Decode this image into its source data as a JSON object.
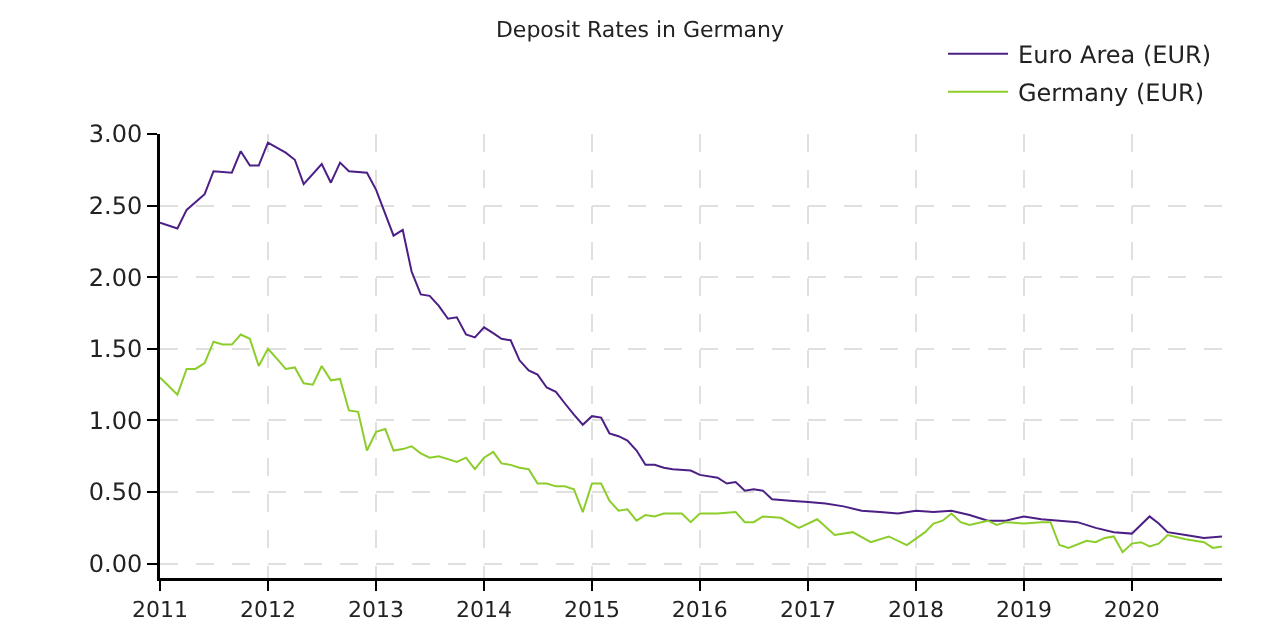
{
  "chart_data": {
    "type": "line",
    "title": "Deposit Rates in Germany",
    "series": [
      {
        "name": "Euro Area (EUR)",
        "color": "#4b1f85",
        "x": [
          "2011-01",
          "2011-03",
          "2011-04",
          "2011-06",
          "2011-07",
          "2011-09",
          "2011-10",
          "2011-11",
          "2011-12",
          "2012-01",
          "2012-03",
          "2012-04",
          "2012-05",
          "2012-07",
          "2012-08",
          "2012-09",
          "2012-10",
          "2012-12",
          "2013-01",
          "2013-03",
          "2013-04",
          "2013-05",
          "2013-06",
          "2013-07",
          "2013-08",
          "2013-09",
          "2013-10",
          "2013-11",
          "2013-12",
          "2014-01",
          "2014-02",
          "2014-03",
          "2014-04",
          "2014-05",
          "2014-06",
          "2014-07",
          "2014-08",
          "2014-09",
          "2014-10",
          "2014-11",
          "2014-12",
          "2015-01",
          "2015-02",
          "2015-03",
          "2015-04",
          "2015-05",
          "2015-06",
          "2015-07",
          "2015-08",
          "2015-09",
          "2015-10",
          "2015-12",
          "2016-01",
          "2016-03",
          "2016-04",
          "2016-05",
          "2016-06",
          "2016-07",
          "2016-08",
          "2016-09",
          "2016-11",
          "2017-01",
          "2017-03",
          "2017-05",
          "2017-07",
          "2017-09",
          "2017-11",
          "2018-01",
          "2018-03",
          "2018-05",
          "2018-07",
          "2018-09",
          "2018-11",
          "2019-01",
          "2019-03",
          "2019-05",
          "2019-07",
          "2019-09",
          "2019-11",
          "2020-01",
          "2020-03",
          "2020-04",
          "2020-05",
          "2020-07",
          "2020-09",
          "2020-11"
        ],
        "values": [
          2.38,
          2.34,
          2.47,
          2.58,
          2.74,
          2.73,
          2.88,
          2.78,
          2.78,
          2.94,
          2.87,
          2.82,
          2.65,
          2.79,
          2.66,
          2.8,
          2.74,
          2.73,
          2.61,
          2.29,
          2.33,
          2.04,
          1.88,
          1.87,
          1.8,
          1.71,
          1.72,
          1.6,
          1.58,
          1.65,
          1.61,
          1.57,
          1.56,
          1.42,
          1.35,
          1.32,
          1.23,
          1.2,
          1.12,
          1.04,
          0.97,
          1.03,
          1.02,
          0.91,
          0.89,
          0.86,
          0.79,
          0.69,
          0.69,
          0.67,
          0.66,
          0.65,
          0.62,
          0.6,
          0.56,
          0.57,
          0.51,
          0.52,
          0.51,
          0.45,
          0.44,
          0.43,
          0.42,
          0.4,
          0.37,
          0.36,
          0.35,
          0.37,
          0.36,
          0.37,
          0.34,
          0.3,
          0.3,
          0.33,
          0.31,
          0.3,
          0.29,
          0.25,
          0.22,
          0.21,
          0.33,
          0.28,
          0.22,
          0.2,
          0.18,
          0.19
        ]
      },
      {
        "name": "Germany (EUR)",
        "color": "#8ccd2c",
        "x": [
          "2011-01",
          "2011-03",
          "2011-04",
          "2011-05",
          "2011-06",
          "2011-07",
          "2011-08",
          "2011-09",
          "2011-10",
          "2011-11",
          "2011-12",
          "2012-01",
          "2012-02",
          "2012-03",
          "2012-04",
          "2012-05",
          "2012-06",
          "2012-07",
          "2012-08",
          "2012-09",
          "2012-10",
          "2012-11",
          "2012-12",
          "2013-01",
          "2013-02",
          "2013-03",
          "2013-04",
          "2013-05",
          "2013-06",
          "2013-07",
          "2013-08",
          "2013-09",
          "2013-10",
          "2013-11",
          "2013-12",
          "2014-01",
          "2014-02",
          "2014-03",
          "2014-04",
          "2014-05",
          "2014-06",
          "2014-07",
          "2014-08",
          "2014-09",
          "2014-10",
          "2014-11",
          "2014-12",
          "2015-01",
          "2015-02",
          "2015-03",
          "2015-04",
          "2015-05",
          "2015-06",
          "2015-07",
          "2015-08",
          "2015-09",
          "2015-11",
          "2015-12",
          "2016-01",
          "2016-03",
          "2016-05",
          "2016-06",
          "2016-07",
          "2016-08",
          "2016-10",
          "2016-12",
          "2017-02",
          "2017-04",
          "2017-06",
          "2017-08",
          "2017-10",
          "2017-12",
          "2018-02",
          "2018-03",
          "2018-04",
          "2018-05",
          "2018-06",
          "2018-07",
          "2018-09",
          "2018-10",
          "2018-11",
          "2019-01",
          "2019-03",
          "2019-04",
          "2019-05",
          "2019-06",
          "2019-08",
          "2019-09",
          "2019-10",
          "2019-11",
          "2019-12",
          "2020-01",
          "2020-02",
          "2020-03",
          "2020-04",
          "2020-05",
          "2020-07",
          "2020-09",
          "2020-10",
          "2020-11"
        ],
        "values": [
          1.3,
          1.18,
          1.36,
          1.36,
          1.4,
          1.55,
          1.53,
          1.53,
          1.6,
          1.57,
          1.38,
          1.5,
          1.43,
          1.36,
          1.37,
          1.26,
          1.25,
          1.38,
          1.28,
          1.29,
          1.07,
          1.06,
          0.79,
          0.92,
          0.94,
          0.79,
          0.8,
          0.82,
          0.77,
          0.74,
          0.75,
          0.73,
          0.71,
          0.74,
          0.66,
          0.74,
          0.78,
          0.7,
          0.69,
          0.67,
          0.66,
          0.56,
          0.56,
          0.54,
          0.54,
          0.52,
          0.36,
          0.56,
          0.56,
          0.44,
          0.37,
          0.38,
          0.3,
          0.34,
          0.33,
          0.35,
          0.35,
          0.29,
          0.35,
          0.35,
          0.36,
          0.29,
          0.29,
          0.33,
          0.32,
          0.25,
          0.31,
          0.2,
          0.22,
          0.15,
          0.19,
          0.13,
          0.22,
          0.28,
          0.3,
          0.35,
          0.29,
          0.27,
          0.3,
          0.27,
          0.29,
          0.28,
          0.29,
          0.29,
          0.13,
          0.11,
          0.16,
          0.15,
          0.18,
          0.19,
          0.08,
          0.14,
          0.15,
          0.12,
          0.14,
          0.2,
          0.17,
          0.15,
          0.11,
          0.12
        ]
      }
    ],
    "xlim": [
      "2011-01",
      "2020-11"
    ],
    "xticks": [
      "2011",
      "2012",
      "2013",
      "2014",
      "2015",
      "2016",
      "2017",
      "2018",
      "2019",
      "2020"
    ],
    "ylim": [
      -0.1,
      3.0
    ],
    "yticks": [
      {
        "value": 0,
        "label": "0.00"
      },
      {
        "value": 0.5,
        "label": "0.50"
      },
      {
        "value": 1,
        "label": "1.00"
      },
      {
        "value": 1.5,
        "label": "1.50"
      },
      {
        "value": 2,
        "label": "2.00"
      },
      {
        "value": 2.5,
        "label": "2.50"
      },
      {
        "value": 3,
        "label": "3.00"
      }
    ],
    "grid": true,
    "legend": "top right",
    "marker": "none",
    "line_style": "solid"
  }
}
